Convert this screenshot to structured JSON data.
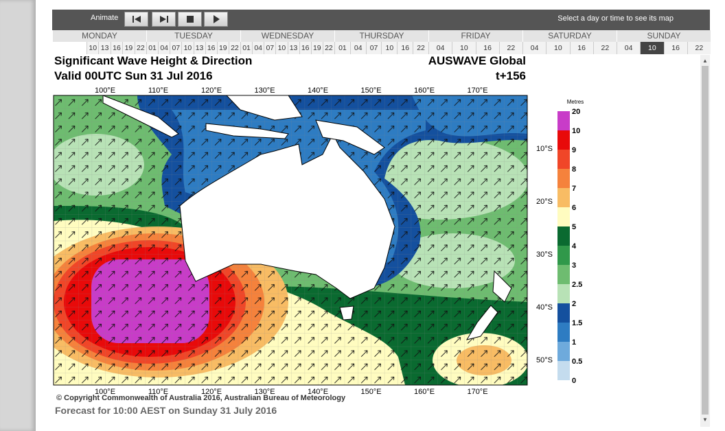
{
  "toolbar": {
    "animate": "Animate",
    "hint": "Select a day or time to see its map"
  },
  "days": [
    {
      "name": "MONDAY",
      "times": [
        "10",
        "13",
        "16",
        "19",
        "22"
      ]
    },
    {
      "name": "TUESDAY",
      "times": [
        "01",
        "04",
        "07",
        "10",
        "13",
        "16",
        "19",
        "22"
      ]
    },
    {
      "name": "WEDNESDAY",
      "times": [
        "01",
        "04",
        "07",
        "10",
        "13",
        "16",
        "19",
        "22"
      ]
    },
    {
      "name": "THURSDAY",
      "times": [
        "01",
        "04",
        "07",
        "10",
        "16",
        "22"
      ]
    },
    {
      "name": "FRIDAY",
      "times": [
        "04",
        "10",
        "16",
        "22"
      ]
    },
    {
      "name": "SATURDAY",
      "times": [
        "04",
        "10",
        "16",
        "22"
      ]
    },
    {
      "name": "SUNDAY",
      "times": [
        "04",
        "10",
        "16",
        "22"
      ]
    }
  ],
  "map": {
    "title": "Significant Wave Height & Direction",
    "valid": "Valid 00UTC Sun 31 Jul 2016",
    "model": "AUSWAVE Global",
    "step": "t+156",
    "lon_labels": [
      "100°E",
      "110°E",
      "120°E",
      "130°E",
      "140°E",
      "150°E",
      "160°E",
      "170°E"
    ],
    "lat_labels": [
      "10°S",
      "20°S",
      "30°S",
      "40°S",
      "50°S"
    ],
    "legend": {
      "unit": "Metres",
      "labels": [
        "20",
        "10",
        "9",
        "8",
        "7",
        "6",
        "5",
        "4",
        "3",
        "2.5",
        "2",
        "1.5",
        "1",
        "0.5",
        "0"
      ],
      "colors": [
        "#c83cc8",
        "#e80a0a",
        "#f04628",
        "#f5823c",
        "#f8bc64",
        "#fffcc0",
        "#0a6a30",
        "#30984a",
        "#6ebc70",
        "#b8e2b6",
        "#14509e",
        "#2e7cc2",
        "#6eaadc",
        "#c4dcee"
      ]
    }
  },
  "footer": {
    "copyright": "© Copyright Commonwealth of Australia 2016, Australian Bureau of Meteorology",
    "forecast": "Forecast for 10:00 AEST on Sunday 31 July 2016"
  }
}
